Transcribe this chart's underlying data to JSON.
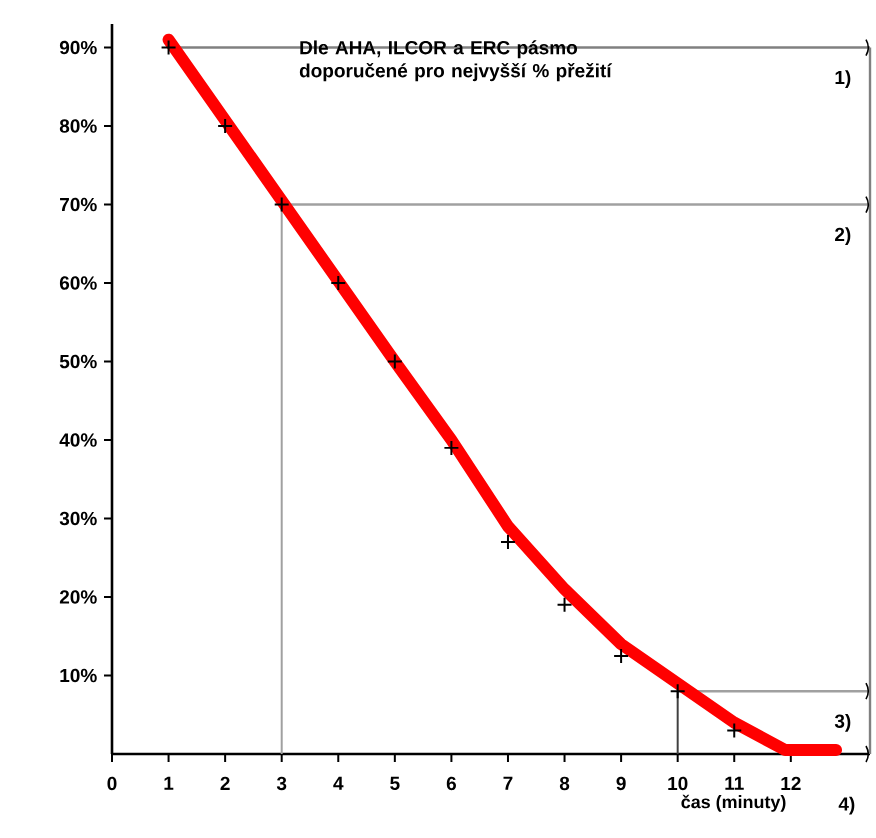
{
  "chart_data": {
    "type": "line",
    "xlabel": "čas (minuty)",
    "annotations": [
      "Dle AHA, ILCOR a ERC pásmo doporučené pro nejvyšší % přežití",
      "1)",
      "2)",
      "3)",
      "4)"
    ],
    "series": [
      {
        "color": "#ff0000",
        "x": [
          1,
          3,
          5,
          6,
          7,
          8,
          9,
          10,
          11,
          11.9,
          12.8
        ],
        "values": [
          91,
          70.5,
          50,
          40,
          29,
          21,
          14,
          9,
          4,
          0.5,
          0.5
        ]
      },
      {
        "type": "scatter",
        "marker": "cross",
        "color": "#000000",
        "x": [
          1,
          2,
          3,
          4,
          5,
          6,
          7,
          8,
          9,
          10,
          11
        ],
        "values": [
          90,
          80,
          70,
          60,
          50,
          39,
          27,
          19,
          12.5,
          8,
          3
        ]
      }
    ],
    "xlim": [
      0,
      13.4
    ],
    "ylim": [
      0,
      93
    ],
    "xticks": [
      0,
      1,
      2,
      3,
      4,
      5,
      6,
      7,
      8,
      9,
      10,
      11,
      12
    ],
    "yticks": [
      {
        "value": 10,
        "label": "10%"
      },
      {
        "value": 20,
        "label": "20%"
      },
      {
        "value": 30,
        "label": "30%"
      },
      {
        "value": 40,
        "label": "40%"
      },
      {
        "value": 50,
        "label": "50%"
      },
      {
        "value": 60,
        "label": "60%"
      },
      {
        "value": 70,
        "label": "70%"
      },
      {
        "value": 80,
        "label": "80%"
      },
      {
        "value": 90,
        "label": "90%"
      }
    ],
    "ref_lines": [
      {
        "axis": "y",
        "value": 90,
        "color": "#808080"
      },
      {
        "axis": "y",
        "value": 70,
        "color": "#a0a0a0"
      },
      {
        "axis": "y",
        "value": 8,
        "color": "#a0a0a0"
      },
      {
        "axis": "x",
        "value": 3,
        "color": "#a0a0a0"
      },
      {
        "axis": "x",
        "value": 10,
        "color": "#404040"
      }
    ]
  }
}
